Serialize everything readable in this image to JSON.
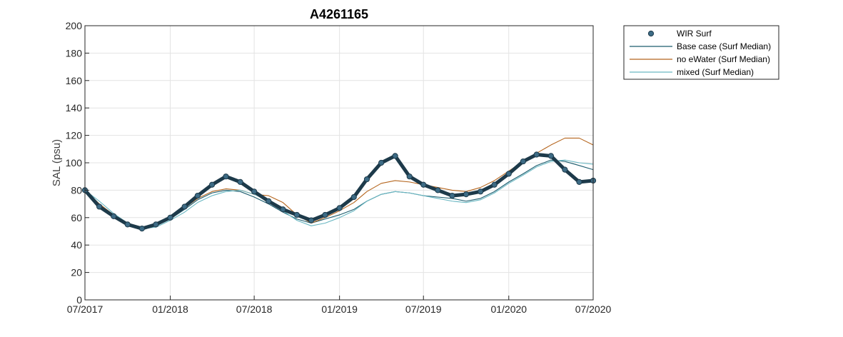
{
  "chart_data": {
    "type": "line",
    "title": "A4261165",
    "xlabel": "",
    "ylabel": "SAL (psu)",
    "xlim": [
      "2017-07-01",
      "2020-07-01"
    ],
    "ylim": [
      0,
      200
    ],
    "x_ticks": [
      "07/2017",
      "01/2018",
      "07/2018",
      "01/2019",
      "07/2019",
      "01/2020",
      "07/2020"
    ],
    "y_ticks": [
      "0",
      "20",
      "40",
      "60",
      "80",
      "100",
      "120",
      "140",
      "160",
      "180",
      "200"
    ],
    "grid": true,
    "legend_position": "outside-top-right",
    "series": [
      {
        "name": "WIR Surf",
        "style": "markers",
        "color": "#3d6b85",
        "points": [
          [
            "2017-07-01",
            80
          ],
          [
            "2017-08-01",
            68
          ],
          [
            "2017-09-01",
            61
          ],
          [
            "2017-10-01",
            55
          ],
          [
            "2017-11-01",
            52
          ],
          [
            "2017-12-01",
            55
          ],
          [
            "2018-01-01",
            60
          ],
          [
            "2018-02-01",
            68
          ],
          [
            "2018-03-01",
            76
          ],
          [
            "2018-04-01",
            84
          ],
          [
            "2018-05-01",
            90
          ],
          [
            "2018-06-01",
            86
          ],
          [
            "2018-07-01",
            79
          ],
          [
            "2018-08-01",
            72
          ],
          [
            "2018-09-01",
            66
          ],
          [
            "2018-10-01",
            62
          ],
          [
            "2018-11-01",
            58
          ],
          [
            "2018-12-01",
            62
          ],
          [
            "2019-01-01",
            67
          ],
          [
            "2019-02-01",
            75
          ],
          [
            "2019-03-01",
            88
          ],
          [
            "2019-04-01",
            100
          ],
          [
            "2019-05-01",
            105
          ],
          [
            "2019-06-01",
            90
          ],
          [
            "2019-07-01",
            84
          ],
          [
            "2019-08-01",
            80
          ],
          [
            "2019-09-01",
            76
          ],
          [
            "2019-10-01",
            77
          ],
          [
            "2019-11-01",
            79
          ],
          [
            "2019-12-01",
            84
          ],
          [
            "2020-01-01",
            92
          ],
          [
            "2020-02-01",
            101
          ],
          [
            "2020-03-01",
            106
          ],
          [
            "2020-04-01",
            105
          ],
          [
            "2020-05-01",
            95
          ],
          [
            "2020-06-01",
            86
          ],
          [
            "2020-07-01",
            87
          ]
        ]
      },
      {
        "name": "Base case (Surf Median)",
        "style": "line",
        "color": "#1c5c6e",
        "points": [
          [
            "2017-07-01",
            80
          ],
          [
            "2017-08-01",
            70
          ],
          [
            "2017-09-01",
            61
          ],
          [
            "2017-10-01",
            55
          ],
          [
            "2017-11-01",
            53
          ],
          [
            "2017-12-01",
            55
          ],
          [
            "2018-01-01",
            59
          ],
          [
            "2018-02-01",
            66
          ],
          [
            "2018-03-01",
            73
          ],
          [
            "2018-04-01",
            78
          ],
          [
            "2018-05-01",
            80
          ],
          [
            "2018-06-01",
            79
          ],
          [
            "2018-07-01",
            75
          ],
          [
            "2018-08-01",
            70
          ],
          [
            "2018-09-01",
            64
          ],
          [
            "2018-10-01",
            59
          ],
          [
            "2018-11-01",
            56
          ],
          [
            "2018-12-01",
            59
          ],
          [
            "2019-01-01",
            62
          ],
          [
            "2019-02-01",
            66
          ],
          [
            "2019-03-01",
            72
          ],
          [
            "2019-04-01",
            77
          ],
          [
            "2019-05-01",
            79
          ],
          [
            "2019-06-01",
            78
          ],
          [
            "2019-07-01",
            76
          ],
          [
            "2019-08-01",
            75
          ],
          [
            "2019-09-01",
            74
          ],
          [
            "2019-10-01",
            72
          ],
          [
            "2019-11-01",
            74
          ],
          [
            "2019-12-01",
            79
          ],
          [
            "2020-01-01",
            86
          ],
          [
            "2020-02-01",
            92
          ],
          [
            "2020-03-01",
            98
          ],
          [
            "2020-04-01",
            102
          ],
          [
            "2020-05-01",
            101
          ],
          [
            "2020-06-01",
            98
          ],
          [
            "2020-07-01",
            95
          ]
        ]
      },
      {
        "name": "no eWater (Surf Median)",
        "style": "line",
        "color": "#b5651d",
        "points": [
          [
            "2017-07-01",
            80
          ],
          [
            "2017-08-01",
            70
          ],
          [
            "2017-09-01",
            62
          ],
          [
            "2017-10-01",
            56
          ],
          [
            "2017-11-01",
            53
          ],
          [
            "2017-12-01",
            55
          ],
          [
            "2018-01-01",
            60
          ],
          [
            "2018-02-01",
            67
          ],
          [
            "2018-03-01",
            74
          ],
          [
            "2018-04-01",
            79
          ],
          [
            "2018-05-01",
            81
          ],
          [
            "2018-06-01",
            80
          ],
          [
            "2018-07-01",
            77
          ],
          [
            "2018-08-01",
            76
          ],
          [
            "2018-09-01",
            71
          ],
          [
            "2018-10-01",
            62
          ],
          [
            "2018-11-01",
            56
          ],
          [
            "2018-12-01",
            60
          ],
          [
            "2019-01-01",
            65
          ],
          [
            "2019-02-01",
            71
          ],
          [
            "2019-03-01",
            79
          ],
          [
            "2019-04-01",
            85
          ],
          [
            "2019-05-01",
            87
          ],
          [
            "2019-06-01",
            86
          ],
          [
            "2019-07-01",
            84
          ],
          [
            "2019-08-01",
            82
          ],
          [
            "2019-09-01",
            80
          ],
          [
            "2019-10-01",
            79
          ],
          [
            "2019-11-01",
            82
          ],
          [
            "2019-12-01",
            87
          ],
          [
            "2020-01-01",
            94
          ],
          [
            "2020-02-01",
            101
          ],
          [
            "2020-03-01",
            107
          ],
          [
            "2020-04-01",
            113
          ],
          [
            "2020-05-01",
            118
          ],
          [
            "2020-06-01",
            118
          ],
          [
            "2020-07-01",
            113
          ]
        ]
      },
      {
        "name": "mixed (Surf Median)",
        "style": "line",
        "color": "#6ab7c2",
        "points": [
          [
            "2017-07-01",
            80
          ],
          [
            "2017-08-01",
            72
          ],
          [
            "2017-09-01",
            63
          ],
          [
            "2017-10-01",
            56
          ],
          [
            "2017-11-01",
            52
          ],
          [
            "2017-12-01",
            53
          ],
          [
            "2018-01-01",
            58
          ],
          [
            "2018-02-01",
            64
          ],
          [
            "2018-03-01",
            71
          ],
          [
            "2018-04-01",
            76
          ],
          [
            "2018-05-01",
            79
          ],
          [
            "2018-06-01",
            80
          ],
          [
            "2018-07-01",
            77
          ],
          [
            "2018-08-01",
            72
          ],
          [
            "2018-09-01",
            65
          ],
          [
            "2018-10-01",
            58
          ],
          [
            "2018-11-01",
            54
          ],
          [
            "2018-12-01",
            56
          ],
          [
            "2019-01-01",
            60
          ],
          [
            "2019-02-01",
            65
          ],
          [
            "2019-03-01",
            72
          ],
          [
            "2019-04-01",
            77
          ],
          [
            "2019-05-01",
            79
          ],
          [
            "2019-06-01",
            78
          ],
          [
            "2019-07-01",
            76
          ],
          [
            "2019-08-01",
            74
          ],
          [
            "2019-09-01",
            72
          ],
          [
            "2019-10-01",
            71
          ],
          [
            "2019-11-01",
            73
          ],
          [
            "2019-12-01",
            78
          ],
          [
            "2020-01-01",
            85
          ],
          [
            "2020-02-01",
            91
          ],
          [
            "2020-03-01",
            97
          ],
          [
            "2020-04-01",
            101
          ],
          [
            "2020-05-01",
            102
          ],
          [
            "2020-06-01",
            100
          ],
          [
            "2020-07-01",
            99
          ]
        ]
      }
    ]
  }
}
